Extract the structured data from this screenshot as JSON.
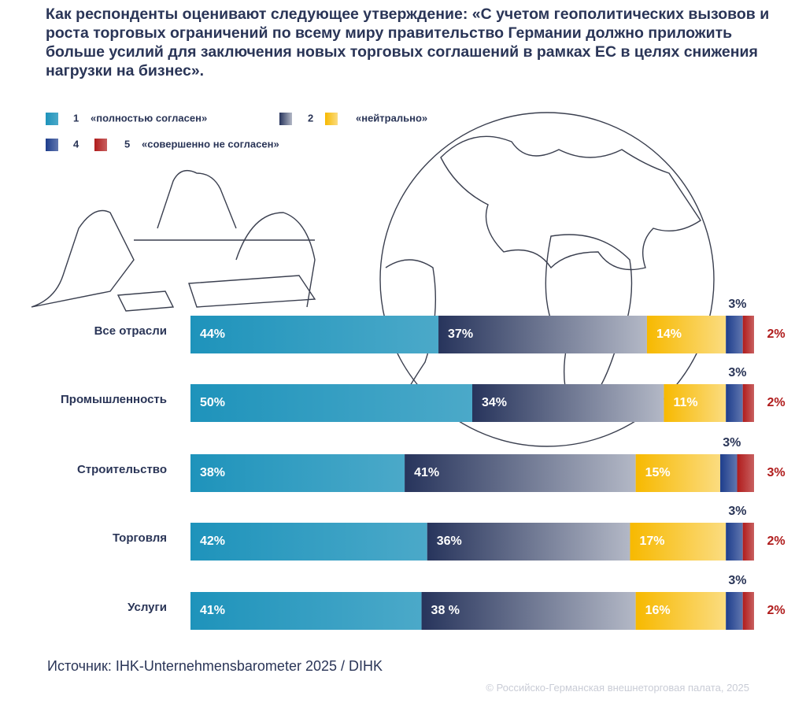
{
  "chart_data": {
    "type": "stacked-bar",
    "title": "Как респонденты оценивают следующее утверждение: «С учетом геополитических вызовов и роста торговых ограничений по всему миру правительство Германии должно приложить больше усилий для заключения новых торговых соглашений в рамках ЕС в целях снижения нагрузки на бизнес».",
    "categories": [
      "Все отрасли",
      "Промышленность",
      "Строительство",
      "Торговля",
      "Услуги"
    ],
    "series": [
      {
        "name": "1",
        "description": "«полностью согласен»",
        "color": "#1e93bb",
        "values": [
          44,
          50,
          38,
          42,
          41
        ],
        "value_labels": [
          "44%",
          "50%",
          "38%",
          "42%",
          "41%"
        ]
      },
      {
        "name": "2",
        "color": "#27345c",
        "values": [
          37,
          34,
          41,
          36,
          38
        ],
        "value_labels": [
          "37%",
          "34%",
          "41%",
          "36%",
          "38 %"
        ]
      },
      {
        "name": "«нейтрально»",
        "color": "#f7b900",
        "values": [
          14,
          11,
          15,
          17,
          16
        ],
        "value_labels": [
          "14%",
          "11%",
          "15%",
          "17%",
          "16%"
        ]
      },
      {
        "name": "4",
        "color": "#1d3d8c",
        "values": [
          3,
          3,
          3,
          3,
          3
        ],
        "value_labels": [
          "3%",
          "3%",
          "3%",
          "3%",
          "3%"
        ]
      },
      {
        "name": "5",
        "description": "«совершенно не согласен»",
        "color": "#b01c1c",
        "values": [
          2,
          2,
          3,
          2,
          2
        ],
        "value_labels": [
          "2%",
          "2%",
          "3%",
          "2%",
          "2%"
        ]
      }
    ],
    "source": "Источник: IHK-Unternehmensbarometer 2025 / DIHK",
    "copyright": "© Российско-Германская внешнеторговая палата, 2025"
  }
}
